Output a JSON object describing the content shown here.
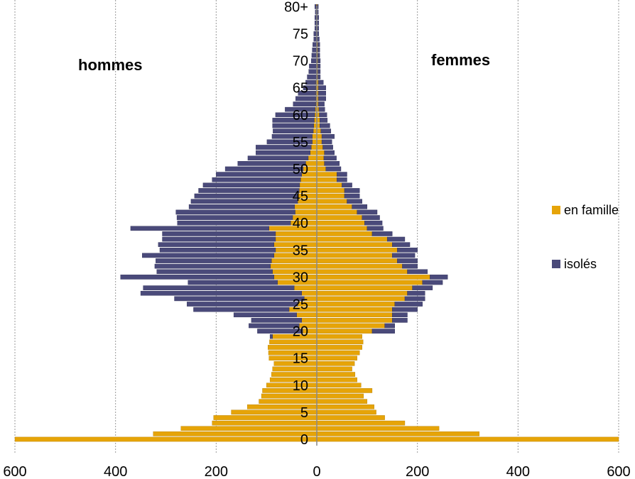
{
  "chart_data": {
    "type": "bar",
    "subtype": "population-pyramid",
    "orientation": "horizontal",
    "title": "",
    "xlabel": "",
    "ylabel": "",
    "left_label": "hommes",
    "right_label": "femmes",
    "xlim": [
      -600,
      600
    ],
    "x_ticks": [
      -600,
      -400,
      -200,
      0,
      200,
      400,
      600
    ],
    "x_tick_labels": [
      "600",
      "400",
      "200",
      "0",
      "200",
      "400",
      "600"
    ],
    "grid": "vertical",
    "legend_position": "right",
    "age_tick_labels": [
      {
        "age": 0,
        "label": "0"
      },
      {
        "age": 5,
        "label": "5"
      },
      {
        "age": 10,
        "label": "10"
      },
      {
        "age": 15,
        "label": "15"
      },
      {
        "age": 20,
        "label": "20"
      },
      {
        "age": 25,
        "label": "25"
      },
      {
        "age": 30,
        "label": "30"
      },
      {
        "age": 35,
        "label": "35"
      },
      {
        "age": 40,
        "label": "40"
      },
      {
        "age": 45,
        "label": "45"
      },
      {
        "age": 50,
        "label": "50"
      },
      {
        "age": 55,
        "label": "55"
      },
      {
        "age": 60,
        "label": "60"
      },
      {
        "age": 65,
        "label": "65"
      },
      {
        "age": 70,
        "label": "70"
      },
      {
        "age": 75,
        "label": "75"
      },
      {
        "age": 80,
        "label": "80+"
      }
    ],
    "ages": [
      0,
      1,
      2,
      3,
      4,
      5,
      6,
      7,
      8,
      9,
      10,
      11,
      12,
      13,
      14,
      15,
      16,
      17,
      18,
      19,
      20,
      21,
      22,
      23,
      24,
      25,
      26,
      27,
      28,
      29,
      30,
      31,
      32,
      33,
      34,
      35,
      36,
      37,
      38,
      39,
      40,
      41,
      42,
      43,
      44,
      45,
      46,
      47,
      48,
      49,
      50,
      51,
      52,
      53,
      54,
      55,
      56,
      57,
      58,
      59,
      60,
      61,
      62,
      63,
      64,
      65,
      66,
      67,
      68,
      69,
      70,
      71,
      72,
      73,
      74,
      75,
      76,
      77,
      78,
      79,
      80
    ],
    "series": [
      {
        "name": "en famille",
        "color": "#E6A408",
        "men": [
          600,
          325,
          270,
          208,
          205,
          170,
          138,
          115,
          110,
          108,
          100,
          93,
          90,
          88,
          85,
          95,
          96,
          97,
          94,
          88,
          28,
          35,
          30,
          40,
          55,
          38,
          25,
          30,
          45,
          78,
          85,
          88,
          92,
          90,
          85,
          82,
          85,
          82,
          82,
          95,
          52,
          48,
          43,
          44,
          38,
          38,
          35,
          34,
          32,
          30,
          27,
          22,
          17,
          13,
          11,
          9,
          9,
          7,
          6,
          5,
          4,
          3,
          2,
          2,
          2,
          2,
          2,
          1,
          1,
          1,
          1,
          1,
          1,
          1,
          1,
          1,
          1,
          1,
          1,
          1,
          1
        ],
        "women": [
          600,
          323,
          243,
          175,
          135,
          118,
          114,
          100,
          93,
          110,
          88,
          80,
          76,
          70,
          75,
          80,
          85,
          90,
          92,
          90,
          110,
          135,
          150,
          150,
          150,
          155,
          175,
          180,
          190,
          210,
          225,
          180,
          170,
          160,
          150,
          160,
          150,
          140,
          110,
          100,
          95,
          90,
          80,
          70,
          60,
          55,
          55,
          50,
          40,
          40,
          18,
          15,
          14,
          15,
          12,
          10,
          10,
          8,
          6,
          6,
          5,
          4,
          3,
          3,
          3,
          3,
          3,
          2,
          2,
          2,
          2,
          2,
          2,
          2,
          1,
          1,
          1,
          1,
          1,
          1,
          1
        ]
      },
      {
        "name": "isolés",
        "color": "#4A4A7A",
        "men": [
          0,
          0,
          0,
          0,
          0,
          0,
          0,
          0,
          0,
          0,
          0,
          0,
          0,
          0,
          0,
          0,
          0,
          0,
          0,
          5,
          90,
          100,
          100,
          125,
          190,
          220,
          258,
          320,
          300,
          178,
          305,
          230,
          230,
          230,
          262,
          230,
          230,
          225,
          225,
          275,
          225,
          230,
          237,
          210,
          212,
          205,
          200,
          192,
          176,
          170,
          155,
          135,
          120,
          108,
          110,
          90,
          80,
          80,
          82,
          83,
          78,
          60,
          45,
          40,
          35,
          25,
          20,
          18,
          15,
          14,
          10,
          9,
          8,
          7,
          5,
          5,
          3,
          3,
          3,
          2,
          3
        ],
        "women": [
          0,
          0,
          0,
          0,
          0,
          0,
          0,
          0,
          0,
          0,
          0,
          0,
          0,
          0,
          0,
          0,
          0,
          0,
          0,
          0,
          45,
          20,
          30,
          30,
          50,
          55,
          40,
          35,
          40,
          40,
          35,
          40,
          30,
          40,
          45,
          40,
          35,
          35,
          40,
          32,
          35,
          35,
          40,
          30,
          30,
          30,
          30,
          20,
          20,
          20,
          30,
          30,
          25,
          20,
          20,
          20,
          25,
          20,
          20,
          15,
          15,
          12,
          12,
          15,
          15,
          15,
          10,
          5,
          5,
          5,
          5,
          4,
          4,
          4,
          4,
          3,
          3,
          3,
          3,
          2,
          2
        ]
      }
    ]
  }
}
